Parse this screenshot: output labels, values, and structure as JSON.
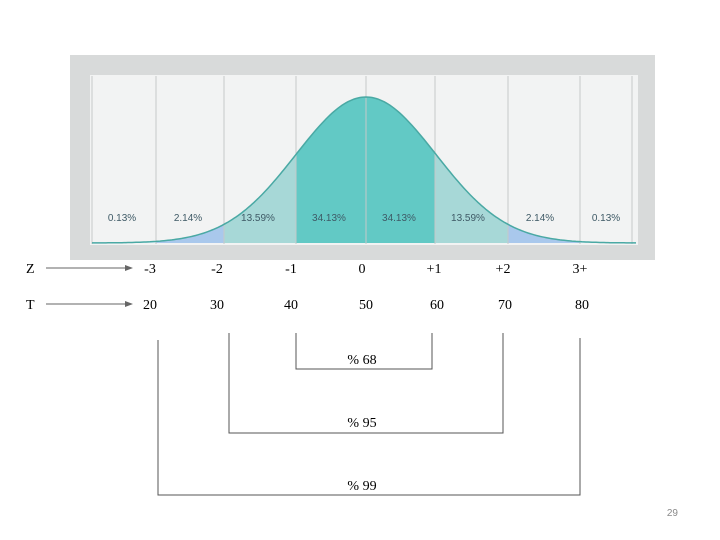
{
  "distribution": {
    "percentages": [
      "0.13%",
      "2.14%",
      "13.59%",
      "34.13%",
      "34.13%",
      "13.59%",
      "2.14%",
      "0.13%"
    ]
  },
  "rows": [
    {
      "name": "Z",
      "values": [
        "-3",
        "-2",
        "-1",
        "0",
        "+1",
        "+2",
        "3+"
      ]
    },
    {
      "name": "T",
      "values": [
        "20",
        "30",
        "40",
        "50",
        "60",
        "70",
        "80"
      ]
    }
  ],
  "brackets": [
    {
      "label": "% 68"
    },
    {
      "label": "% 95"
    },
    {
      "label": "% 99"
    }
  ],
  "colors": {
    "panel_bg": "#d8dada",
    "inner_bg": "#f2f3f3",
    "center_fill": "#62c9c5",
    "mid_fill": "#a7d8d7",
    "outer_fill": "#a9c8ec",
    "tail_fill": "#d5ecf4",
    "curve": "#4aa9a4"
  },
  "page_number": "29"
}
